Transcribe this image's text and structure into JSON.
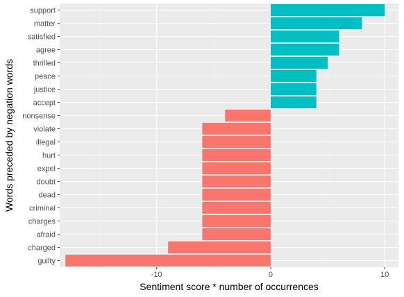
{
  "colors": {
    "positive": "#00BFC4",
    "negative": "#F8766D",
    "panel": "#EBEBEB",
    "grid_major": "#FFFFFF",
    "grid_minor": "#F5F5F5",
    "tick_text": "#4D4D4D"
  },
  "chart_data": {
    "type": "bar",
    "orientation": "horizontal",
    "xlabel": "Sentiment score * number of occurrences",
    "ylabel": "Words preceded by negation words",
    "xlim": [
      -18.5,
      11.2
    ],
    "xticks": [
      -10,
      0,
      10
    ],
    "grid": true,
    "legend": "none",
    "categories": [
      "support",
      "matter",
      "satisfied",
      "agree",
      "thrilled",
      "peace",
      "justice",
      "accept",
      "nonsense",
      "violate",
      "illegal",
      "hurt",
      "expel",
      "doubt",
      "dead",
      "criminal",
      "charges",
      "afraid",
      "charged",
      "guilty"
    ],
    "values": [
      10,
      8,
      6,
      6,
      5,
      4,
      4,
      4,
      -4,
      -6,
      -6,
      -6,
      -6,
      -6,
      -6,
      -6,
      -6,
      -6,
      -9,
      -18
    ]
  }
}
